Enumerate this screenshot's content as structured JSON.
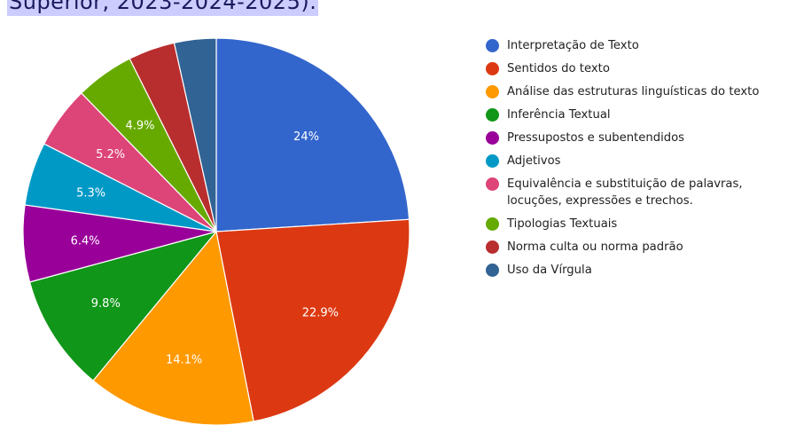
{
  "caption": {
    "text": "Superior, 2023-2024-2025)."
  },
  "chart_data": {
    "type": "pie",
    "title": "",
    "categories": [
      "Interpretação de Texto",
      "Sentidos do texto",
      "Análise das estruturas linguísticas do texto",
      "Inferência Textual",
      "Pressupostos e subentendidos",
      "Adjetivos",
      "Equivalência e substituição de palavras, locuções, expressões e trechos.",
      "Tipologias Textuais",
      "Norma culta ou norma padrão",
      "Uso da Vírgula"
    ],
    "values": [
      24,
      22.9,
      14.1,
      9.8,
      6.4,
      5.3,
      5.2,
      4.9,
      3.9,
      3.5
    ],
    "labels": [
      "24%",
      "22.9%",
      "14.1%",
      "9.8%",
      "6.4%",
      "5.3%",
      "5.2%",
      "4.9%",
      "",
      ""
    ],
    "colors": [
      "#3366cc",
      "#dc3912",
      "#ff9900",
      "#109618",
      "#990099",
      "#0099c6",
      "#dd4477",
      "#66aa00",
      "#b82e2e",
      "#316395"
    ],
    "start_angle_deg": 0,
    "direction": "clockwise",
    "legend_position": "right"
  },
  "legend": {
    "items": [
      {
        "label": "Interpretação de Texto",
        "color": "#3366cc"
      },
      {
        "label": "Sentidos do texto",
        "color": "#dc3912"
      },
      {
        "label": "Análise das estruturas linguísticas do texto",
        "color": "#ff9900"
      },
      {
        "label": "Inferência Textual",
        "color": "#109618"
      },
      {
        "label": "Pressupostos e subentendidos",
        "color": "#990099"
      },
      {
        "label": "Adjetivos",
        "color": "#0099c6"
      },
      {
        "label": "Equivalência e substituição de palavras, locuções, expressões e trechos.",
        "color": "#dd4477"
      },
      {
        "label": "Tipologias Textuais",
        "color": "#66aa00"
      },
      {
        "label": "Norma culta ou norma padrão",
        "color": "#b82e2e"
      },
      {
        "label": "Uso da Vírgula",
        "color": "#316395"
      }
    ]
  }
}
